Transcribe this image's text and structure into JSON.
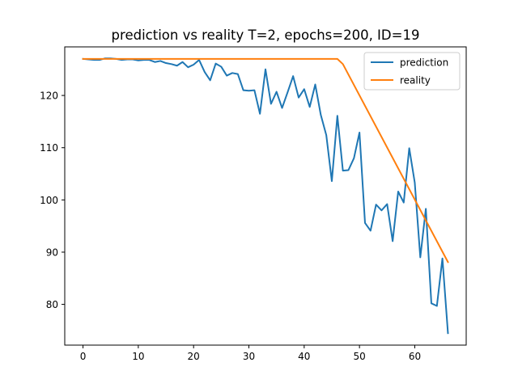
{
  "chart_data": {
    "type": "line",
    "title": "prediction vs reality T=2, epochs=200, ID=19",
    "xlabel": "",
    "ylabel": "",
    "xlim": [
      -3.3,
      69.3
    ],
    "ylim": [
      72.2,
      129.3
    ],
    "xticks": [
      0,
      10,
      20,
      30,
      40,
      50,
      60
    ],
    "yticks": [
      80,
      90,
      100,
      110,
      120
    ],
    "grid": false,
    "legend_position": "top-right",
    "series": [
      {
        "name": "prediction",
        "color": "#1f77b4",
        "x": [
          0,
          1,
          2,
          3,
          4,
          5,
          6,
          7,
          8,
          9,
          10,
          11,
          12,
          13,
          14,
          15,
          16,
          17,
          18,
          19,
          20,
          21,
          22,
          23,
          24,
          25,
          26,
          27,
          28,
          29,
          30,
          31,
          32,
          33,
          34,
          35,
          36,
          37,
          38,
          39,
          40,
          41,
          42,
          43,
          44,
          45,
          46,
          47,
          48,
          49,
          50,
          51,
          52,
          53,
          54,
          55,
          56,
          57,
          58,
          59,
          60,
          61,
          62,
          63,
          64,
          65,
          66
        ],
        "y": [
          127.0,
          126.9,
          126.8,
          126.8,
          127.1,
          127.1,
          127.0,
          126.8,
          126.9,
          126.9,
          126.7,
          126.8,
          126.8,
          126.4,
          126.6,
          126.2,
          126.0,
          125.7,
          126.4,
          125.4,
          125.9,
          126.8,
          124.5,
          122.9,
          126.1,
          125.5,
          123.8,
          124.3,
          124.1,
          121.0,
          120.9,
          121.0,
          116.5,
          125.0,
          118.4,
          120.7,
          117.6,
          120.6,
          123.7,
          119.6,
          121.2,
          117.8,
          122.1,
          116.3,
          112.4,
          103.6,
          116.1,
          105.6,
          105.7,
          108.0,
          112.9,
          95.6,
          94.1,
          99.1,
          98.0,
          99.2,
          92.1,
          101.6,
          99.5,
          109.9,
          103.3,
          89.0,
          98.3,
          80.2,
          79.7,
          88.8,
          74.5
        ]
      },
      {
        "name": "reality",
        "color": "#ff7f0e",
        "x": [
          0,
          10,
          20,
          30,
          40,
          46,
          47,
          66
        ],
        "y": [
          127.0,
          127.0,
          127.0,
          127.0,
          127.0,
          127.0,
          126.0,
          88.1
        ]
      }
    ]
  }
}
